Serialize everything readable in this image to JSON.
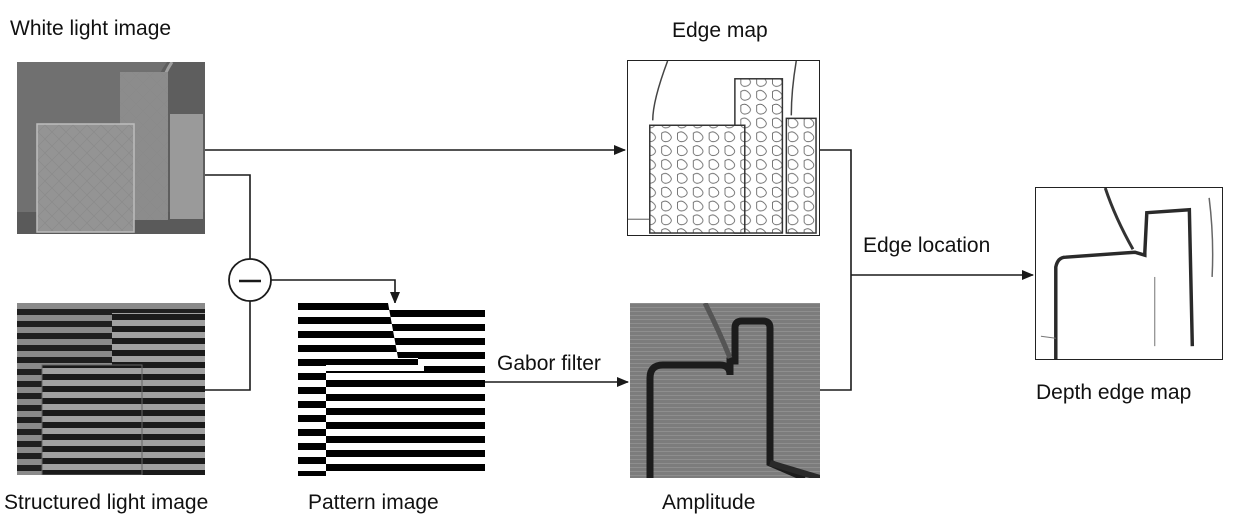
{
  "labels": {
    "white_light": "White light image",
    "structured_light": "Structured light image",
    "pattern": "Pattern image",
    "amplitude": "Amplitude",
    "edge_map": "Edge map",
    "depth_edge_map": "Depth edge map",
    "gabor_filter": "Gabor filter",
    "edge_location": "Edge location"
  },
  "colors": {
    "wire": "#1a1a1a",
    "text": "#111111",
    "white_light_bg": "#6f6f6f",
    "amplitude_bg": "#7d7d7d"
  },
  "operator_symbol": "subtract"
}
